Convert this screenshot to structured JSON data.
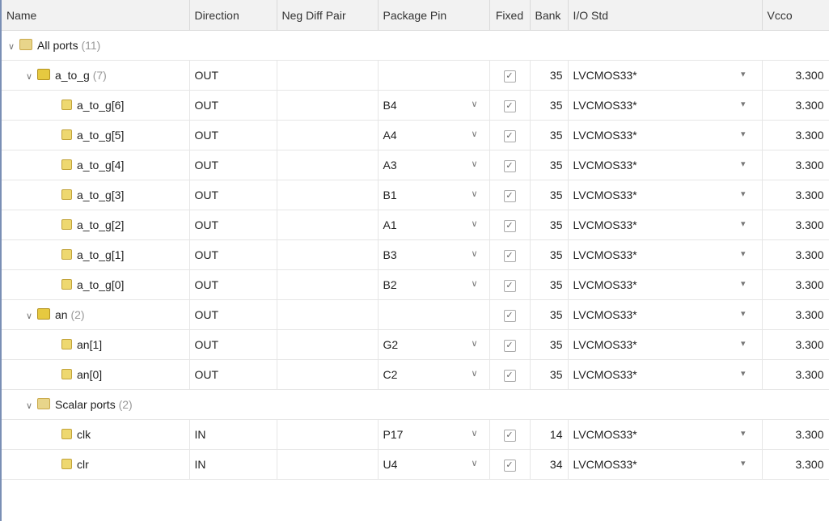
{
  "columns": [
    "Name",
    "Direction",
    "Neg Diff Pair",
    "Package Pin",
    "Fixed",
    "Bank",
    "I/O Std",
    "Vcco"
  ],
  "rows": [
    {
      "type": "group",
      "level": 0,
      "name": "All ports",
      "count": "(11)"
    },
    {
      "type": "bus",
      "level": 1,
      "name": "a_to_g",
      "count": "(7)",
      "direction": "OUT",
      "pin": "",
      "fixed": true,
      "bank": "35",
      "iostd": "LVCMOS33*",
      "vcco": "3.300"
    },
    {
      "type": "leaf",
      "level": 2,
      "name": "a_to_g[6]",
      "direction": "OUT",
      "pin": "B4",
      "fixed": true,
      "bank": "35",
      "iostd": "LVCMOS33*",
      "vcco": "3.300"
    },
    {
      "type": "leaf",
      "level": 2,
      "name": "a_to_g[5]",
      "direction": "OUT",
      "pin": "A4",
      "fixed": true,
      "bank": "35",
      "iostd": "LVCMOS33*",
      "vcco": "3.300"
    },
    {
      "type": "leaf",
      "level": 2,
      "name": "a_to_g[4]",
      "direction": "OUT",
      "pin": "A3",
      "fixed": true,
      "bank": "35",
      "iostd": "LVCMOS33*",
      "vcco": "3.300"
    },
    {
      "type": "leaf",
      "level": 2,
      "name": "a_to_g[3]",
      "direction": "OUT",
      "pin": "B1",
      "fixed": true,
      "bank": "35",
      "iostd": "LVCMOS33*",
      "vcco": "3.300"
    },
    {
      "type": "leaf",
      "level": 2,
      "name": "a_to_g[2]",
      "direction": "OUT",
      "pin": "A1",
      "fixed": true,
      "bank": "35",
      "iostd": "LVCMOS33*",
      "vcco": "3.300"
    },
    {
      "type": "leaf",
      "level": 2,
      "name": "a_to_g[1]",
      "direction": "OUT",
      "pin": "B3",
      "fixed": true,
      "bank": "35",
      "iostd": "LVCMOS33*",
      "vcco": "3.300"
    },
    {
      "type": "leaf",
      "level": 2,
      "name": "a_to_g[0]",
      "direction": "OUT",
      "pin": "B2",
      "fixed": true,
      "bank": "35",
      "iostd": "LVCMOS33*",
      "vcco": "3.300"
    },
    {
      "type": "bus",
      "level": 1,
      "name": "an",
      "count": "(2)",
      "direction": "OUT",
      "pin": "",
      "fixed": true,
      "bank": "35",
      "iostd": "LVCMOS33*",
      "vcco": "3.300"
    },
    {
      "type": "leaf",
      "level": 2,
      "name": "an[1]",
      "direction": "OUT",
      "pin": "G2",
      "fixed": true,
      "bank": "35",
      "iostd": "LVCMOS33*",
      "vcco": "3.300"
    },
    {
      "type": "leaf",
      "level": 2,
      "name": "an[0]",
      "direction": "OUT",
      "pin": "C2",
      "fixed": true,
      "bank": "35",
      "iostd": "LVCMOS33*",
      "vcco": "3.300"
    },
    {
      "type": "group",
      "level": 1,
      "name": "Scalar ports",
      "count": "(2)"
    },
    {
      "type": "scalar",
      "level": 2,
      "name": "clk",
      "direction": "IN",
      "pin": "P17",
      "fixed": true,
      "bank": "14",
      "iostd": "LVCMOS33*",
      "vcco": "3.300"
    },
    {
      "type": "scalar",
      "level": 2,
      "name": "clr",
      "direction": "IN",
      "pin": "U4",
      "fixed": true,
      "bank": "34",
      "iostd": "LVCMOS33*",
      "vcco": "3.300"
    }
  ],
  "icons": {
    "expand": "chevron-down-icon",
    "dropdown": "chevron-down-icon",
    "iostd_dropdown": "caret-down-icon",
    "fixed": "checkbox-checked-icon"
  }
}
